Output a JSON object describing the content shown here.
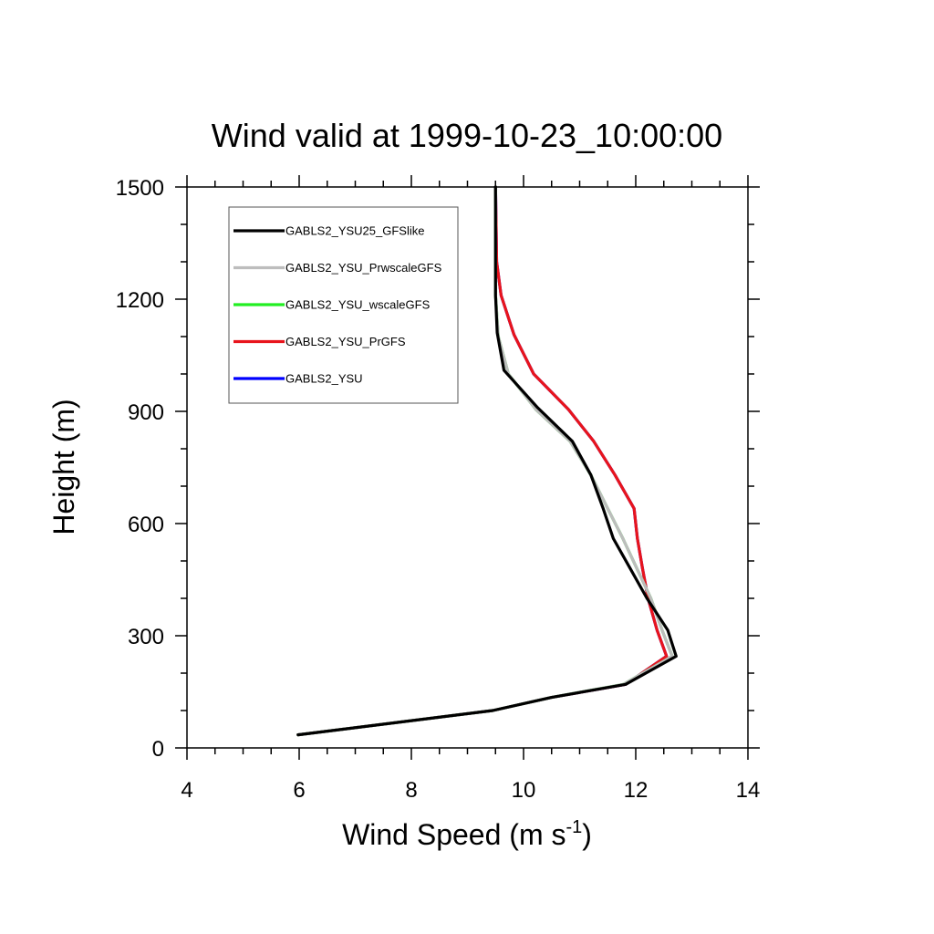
{
  "chart_data": {
    "type": "line",
    "title": "Wind valid at 1999-10-23_10:00:00",
    "xlabel": "Wind Speed (m s",
    "xlabel_superscript": "-1",
    "xlabel_suffix": ")",
    "ylabel": "Height (m)",
    "xlim": [
      4,
      14
    ],
    "ylim": [
      0,
      1500
    ],
    "x_ticks": [
      4,
      6,
      8,
      10,
      12,
      14
    ],
    "y_ticks": [
      0,
      300,
      600,
      900,
      1200,
      1500
    ],
    "x_minor_step": 0.5,
    "y_minor_step": 100,
    "grid": false,
    "legend_position": "top-left",
    "series": [
      {
        "name": "GABLS2_YSU",
        "color": "#0000ff",
        "x": [
          5.98,
          9.45,
          10.5,
          11.82,
          12.55,
          12.38,
          12.22,
          12.12,
          12.03,
          11.97,
          11.63,
          11.25,
          10.8,
          10.18,
          9.83,
          9.6,
          9.52,
          9.5
        ],
        "y": [
          35,
          100,
          135,
          170,
          245,
          315,
          400,
          480,
          560,
          640,
          730,
          820,
          905,
          1000,
          1105,
          1210,
          1300,
          1500
        ]
      },
      {
        "name": "GABLS2_YSU_PrGFS",
        "color": "#e8141c",
        "x": [
          5.98,
          9.45,
          10.5,
          11.82,
          12.55,
          12.38,
          12.22,
          12.12,
          12.03,
          11.97,
          11.63,
          11.25,
          10.8,
          10.18,
          9.83,
          9.6,
          9.52,
          9.5
        ],
        "y": [
          35,
          100,
          135,
          170,
          245,
          315,
          400,
          480,
          560,
          640,
          730,
          820,
          905,
          1000,
          1105,
          1210,
          1300,
          1500
        ]
      },
      {
        "name": "GABLS2_YSU_wscaleGFS",
        "color": "#22ee22",
        "x": [
          5.98,
          9.45,
          10.5,
          11.78,
          12.65,
          12.47,
          12.27,
          12.02,
          11.77,
          11.5,
          11.2,
          10.83,
          10.22,
          9.73,
          9.55,
          9.5,
          9.5
        ],
        "y": [
          35,
          100,
          135,
          170,
          245,
          315,
          400,
          480,
          560,
          640,
          730,
          820,
          905,
          1000,
          1100,
          1210,
          1500
        ]
      },
      {
        "name": "GABLS2_YSU_PrwscaleGFS",
        "color": "#bdbdbd",
        "x": [
          5.98,
          9.45,
          10.5,
          11.78,
          12.65,
          12.47,
          12.27,
          12.02,
          11.77,
          11.5,
          11.2,
          10.83,
          10.22,
          9.73,
          9.55,
          9.5,
          9.5
        ],
        "y": [
          35,
          100,
          135,
          170,
          245,
          315,
          400,
          480,
          560,
          640,
          730,
          820,
          905,
          1000,
          1100,
          1210,
          1500
        ]
      },
      {
        "name": "GABLS2_YSU25_GFSlike",
        "color": "#000000",
        "x": [
          5.98,
          9.45,
          10.5,
          11.82,
          12.72,
          12.57,
          12.2,
          11.9,
          11.6,
          11.42,
          11.2,
          10.87,
          10.25,
          9.65,
          9.53,
          9.5,
          9.5
        ],
        "y": [
          35,
          100,
          135,
          170,
          245,
          315,
          400,
          480,
          560,
          640,
          730,
          820,
          910,
          1010,
          1110,
          1210,
          1500
        ]
      }
    ],
    "legend_order": [
      "GABLS2_YSU25_GFSlike",
      "GABLS2_YSU_PrwscaleGFS",
      "GABLS2_YSU_wscaleGFS",
      "GABLS2_YSU_PrGFS",
      "GABLS2_YSU"
    ]
  }
}
